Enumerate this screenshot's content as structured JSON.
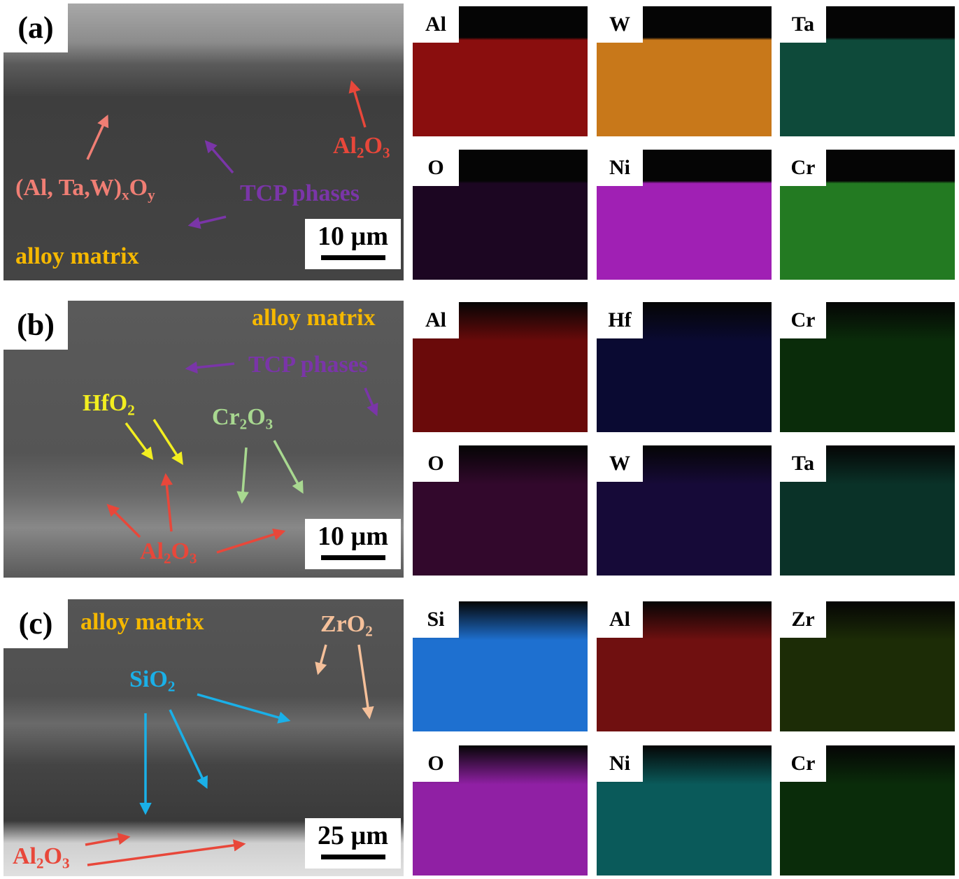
{
  "panels": [
    {
      "label": "(a)",
      "scale_bar": "10 µm",
      "annotations": [
        {
          "text": "(Al, Ta,W)_xO_y",
          "color": "#f07e74"
        },
        {
          "text": "Al_2O_3",
          "color": "#e8473a"
        },
        {
          "text": "TCP phases",
          "color": "#7a35a8"
        },
        {
          "text": "alloy matrix",
          "color": "#f5b800"
        }
      ],
      "maps": [
        {
          "element": "Al",
          "color": "#8a0e0e"
        },
        {
          "element": "W",
          "color": "#c8781a"
        },
        {
          "element": "Ta",
          "color": "#0e4a3a"
        },
        {
          "element": "O",
          "color": "#1c0622"
        },
        {
          "element": "Ni",
          "color": "#a020b4"
        },
        {
          "element": "Cr",
          "color": "#237a22"
        }
      ]
    },
    {
      "label": "(b)",
      "scale_bar": "10 µm",
      "annotations": [
        {
          "text": "alloy matrix",
          "color": "#f5b800"
        },
        {
          "text": "TCP phases",
          "color": "#7a35a8"
        },
        {
          "text": "HfO_2",
          "color": "#f2ee20"
        },
        {
          "text": "Cr_2O_3",
          "color": "#a8d890"
        },
        {
          "text": "Al_2O_3",
          "color": "#e8473a"
        }
      ],
      "maps": [
        {
          "element": "Al",
          "color": "#6a0a0a"
        },
        {
          "element": "Hf",
          "color": "#0a0a32"
        },
        {
          "element": "Cr",
          "color": "#0a2c0a"
        },
        {
          "element": "O",
          "color": "#32082c"
        },
        {
          "element": "W",
          "color": "#160a38"
        },
        {
          "element": "Ta",
          "color": "#0a3228"
        }
      ]
    },
    {
      "label": "(c)",
      "scale_bar": "25 µm",
      "annotations": [
        {
          "text": "alloy matrix",
          "color": "#f5b800"
        },
        {
          "text": "ZrO_2",
          "color": "#f5c09a"
        },
        {
          "text": "SiO_2",
          "color": "#1ab0e8"
        },
        {
          "text": "Al_2O_3",
          "color": "#e8473a"
        }
      ],
      "maps": [
        {
          "element": "Si",
          "color": "#1e70d0"
        },
        {
          "element": "Al",
          "color": "#701010"
        },
        {
          "element": "Zr",
          "color": "#1c2c06"
        },
        {
          "element": "O",
          "color": "#9020a4"
        },
        {
          "element": "Ni",
          "color": "#0a5a5a"
        },
        {
          "element": "Cr",
          "color": "#0a2c0a"
        }
      ]
    }
  ]
}
